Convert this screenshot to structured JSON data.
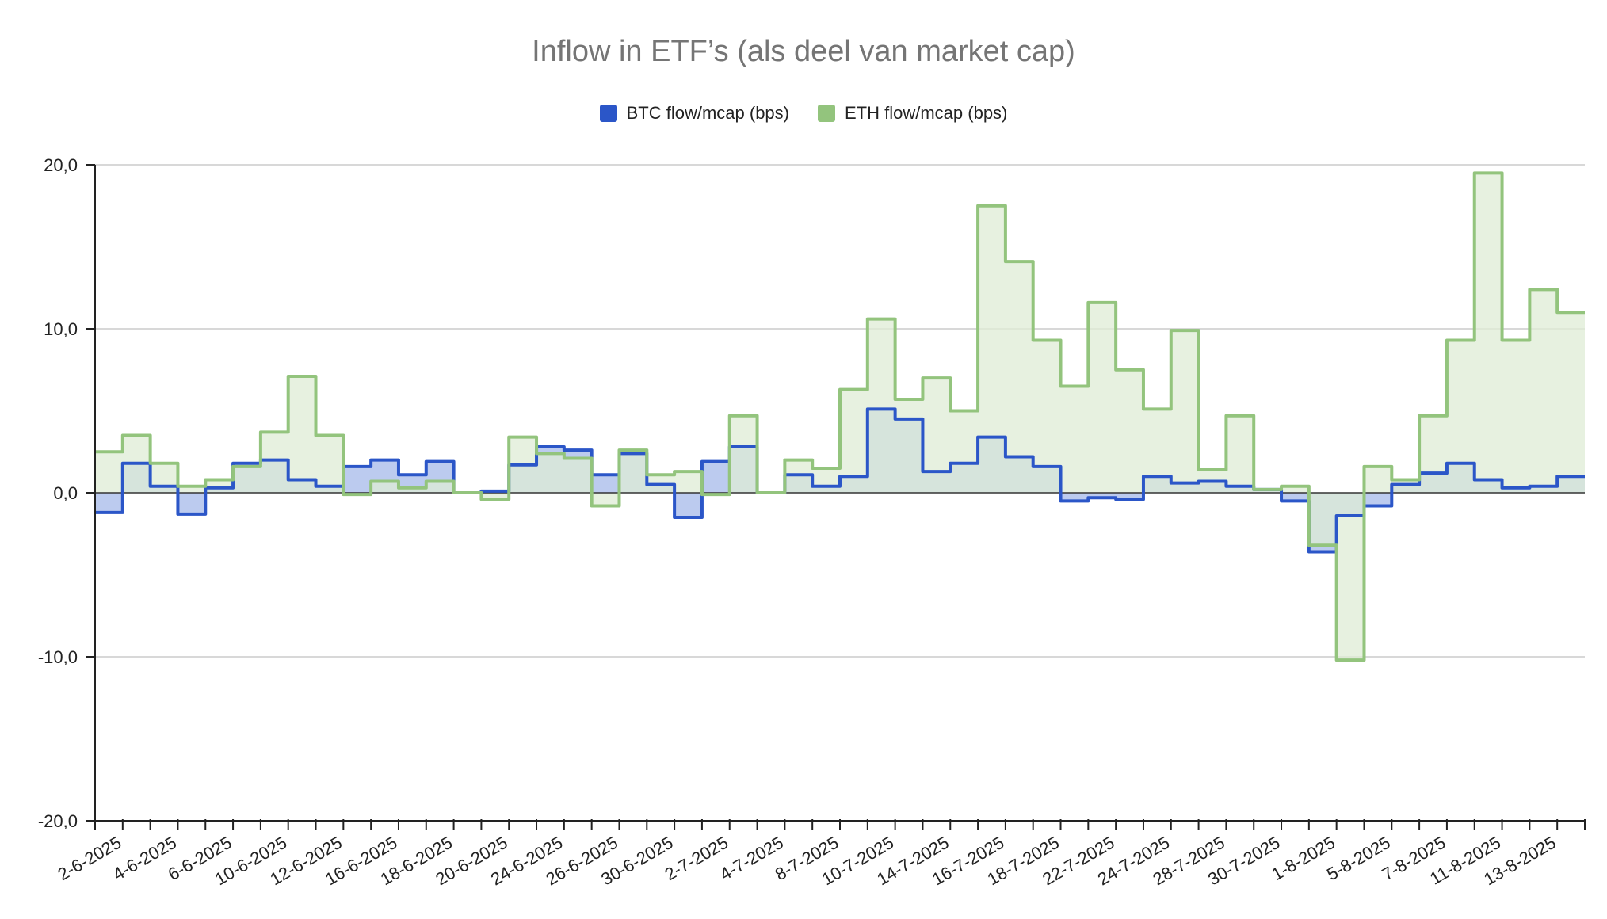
{
  "chart_data": {
    "type": "area",
    "title": "Inflow in ETF’s (als deel van market cap)",
    "xlabel": "",
    "ylabel": "",
    "ylim": [
      -20,
      20
    ],
    "yticks": [
      "20,0",
      "10,0",
      "0,0",
      "-10,0",
      "-20,0"
    ],
    "ytick_values": [
      20,
      10,
      0,
      -10,
      -20
    ],
    "grid": true,
    "legend_position": "top",
    "x_tick_labels": [
      "2-6-2025",
      "4-6-2025",
      "6-6-2025",
      "10-6-2025",
      "12-6-2025",
      "16-6-2025",
      "18-6-2025",
      "20-6-2025",
      "24-6-2025",
      "26-6-2025",
      "30-6-2025",
      "2-7-2025",
      "4-7-2025",
      "8-7-2025",
      "10-7-2025",
      "14-7-2025",
      "16-7-2025",
      "18-7-2025",
      "22-7-2025",
      "24-7-2025",
      "28-7-2025",
      "30-7-2025",
      "1-8-2025",
      "5-8-2025",
      "7-8-2025",
      "11-8-2025",
      "13-8-2025"
    ],
    "series": [
      {
        "name": "BTC flow/mcap (bps)",
        "color": "#2b56c8",
        "fill": "#b8c8ee",
        "values": [
          -1.2,
          1.8,
          0.4,
          -1.3,
          0.3,
          1.8,
          2.0,
          0.8,
          0.4,
          1.6,
          2.0,
          1.1,
          1.9,
          0.0,
          0.1,
          1.7,
          2.8,
          2.6,
          1.1,
          2.4,
          0.5,
          -1.5,
          1.9,
          2.8,
          0.0,
          1.1,
          0.4,
          1.0,
          5.1,
          4.5,
          1.3,
          1.8,
          3.4,
          2.2,
          1.6,
          -0.5,
          -0.3,
          -0.4,
          1.0,
          0.6,
          0.7,
          0.4,
          0.2,
          -0.5,
          -3.6,
          -1.4,
          -0.8,
          0.5,
          1.2,
          1.8,
          0.8,
          0.3,
          0.4,
          1.0
        ]
      },
      {
        "name": "ETH flow/mcap (bps)",
        "color": "#93c47d",
        "fill": "#dfecd6",
        "values": [
          2.5,
          3.5,
          1.8,
          0.4,
          0.8,
          1.6,
          3.7,
          7.1,
          3.5,
          -0.1,
          0.7,
          0.3,
          0.7,
          0.0,
          -0.4,
          3.4,
          2.4,
          2.1,
          -0.8,
          2.6,
          1.1,
          1.3,
          -0.1,
          4.7,
          0.0,
          2.0,
          1.5,
          6.3,
          10.6,
          5.7,
          7.0,
          5.0,
          17.5,
          14.1,
          9.3,
          6.5,
          11.6,
          7.5,
          5.1,
          9.9,
          1.4,
          4.7,
          0.2,
          0.4,
          -3.2,
          -10.2,
          1.6,
          0.8,
          4.7,
          9.3,
          19.5,
          9.3,
          12.4,
          11.0
        ]
      }
    ]
  }
}
